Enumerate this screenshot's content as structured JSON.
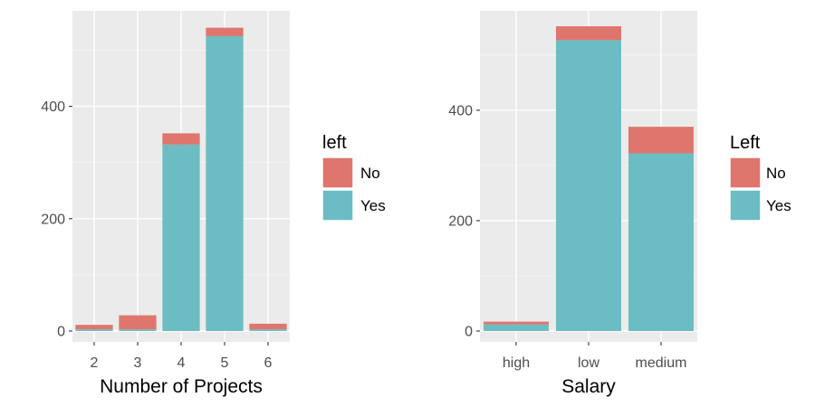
{
  "chart_data": [
    {
      "type": "bar",
      "stacked": true,
      "categories": [
        "2",
        "3",
        "4",
        "5",
        "6"
      ],
      "series": [
        {
          "name": "No",
          "values": [
            8,
            25,
            20,
            15,
            10
          ]
        },
        {
          "name": "Yes",
          "values": [
            3,
            3,
            332,
            525,
            3
          ]
        }
      ],
      "title": "",
      "xlabel": "Number of Projects",
      "ylabel": "",
      "ylim": [
        0,
        570
      ],
      "yticks": [
        0,
        200,
        400
      ],
      "legend_title": "left",
      "legend_position": "right",
      "grid": true,
      "colors": {
        "No": "#df766e",
        "Yes": "#6cbdc3"
      }
    },
    {
      "type": "bar",
      "stacked": true,
      "categories": [
        "high",
        "low",
        "medium"
      ],
      "series": [
        {
          "name": "No",
          "values": [
            5,
            25,
            48
          ]
        },
        {
          "name": "Yes",
          "values": [
            12,
            527,
            322
          ]
        }
      ],
      "title": "",
      "xlabel": "Salary",
      "ylabel": "",
      "ylim": [
        0,
        580
      ],
      "yticks": [
        0,
        200,
        400
      ],
      "legend_title": "Left",
      "legend_position": "right",
      "grid": true,
      "colors": {
        "No": "#df766e",
        "Yes": "#6cbdc3"
      }
    }
  ]
}
